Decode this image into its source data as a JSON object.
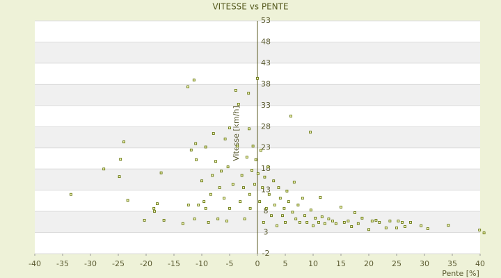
{
  "chart_data": {
    "type": "scatter",
    "title": "VITESSE vs PENTE",
    "xlabel": "Pente [%]",
    "ylabel": "Vitesse [km/h]",
    "color": "#5a6b00",
    "xlim": [
      -40,
      40
    ],
    "xticks": [
      -40,
      -35,
      -30,
      -25,
      -20,
      -15,
      -10,
      -5,
      0,
      5,
      10,
      15,
      20,
      25,
      30,
      35,
      40
    ],
    "ylim": [
      -2,
      53
    ],
    "yticks": [
      -2,
      3,
      8,
      13,
      18,
      23,
      28,
      33,
      38,
      43,
      48,
      53
    ],
    "grid": true,
    "x": [
      -33.5,
      -27.6,
      -24.6,
      -24,
      -24.8,
      -23.3,
      -20.3,
      -18.6,
      -18.5,
      -18,
      -17.3,
      -16.8,
      -13.4,
      -12.5,
      -11.4,
      -12.4,
      -11.3,
      -11.9,
      -11.1,
      -11,
      -10.6,
      -10,
      -9.6,
      -9.3,
      -9.3,
      -8.8,
      -8.4,
      -8.1,
      -7.9,
      -7.5,
      -7.1,
      -6.8,
      -6.5,
      -6,
      -5.8,
      -5.5,
      -5,
      -5.3,
      -5,
      -4.4,
      -3.9,
      -3.6,
      -3.4,
      -3.1,
      -2.8,
      -2.5,
      -2.3,
      -1.9,
      -1.6,
      -1.5,
      -1.4,
      -1.3,
      -1,
      -0.8,
      -0.5,
      -0.3,
      0,
      0.1,
      0.4,
      0.6,
      0.9,
      1.1,
      1.3,
      1.6,
      1.9,
      2.1,
      2.5,
      2.9,
      3.1,
      3.5,
      3.8,
      4.1,
      4.5,
      4.8,
      5,
      5.3,
      5.6,
      6,
      6.3,
      6.6,
      6.9,
      7.3,
      7.6,
      8.1,
      8.5,
      8.9,
      9.5,
      9.6,
      10,
      10.4,
      11,
      11.3,
      11.6,
      12.1,
      12.8,
      13.5,
      14.1,
      15,
      15.6,
      16.3,
      16.9,
      17.5,
      18.1,
      18.8,
      20,
      20.6,
      21.3,
      21.9,
      23.1,
      23.8,
      25,
      25.3,
      26,
      26.5,
      27.5,
      29.4,
      30.6,
      34.3,
      39.9,
      40.7
    ],
    "values": [
      12,
      18,
      20.3,
      24.4,
      16.2,
      10.6,
      5.9,
      8.7,
      8,
      9.8,
      17.1,
      5.9,
      5.1,
      37.4,
      39,
      9.5,
      6.2,
      22.5,
      24,
      20.2,
      9.5,
      15.2,
      10.3,
      23.2,
      8.7,
      5.4,
      12,
      16.5,
      26.4,
      19.8,
      6.2,
      13.6,
      17.5,
      11.1,
      25.1,
      5.7,
      27.7,
      18.5,
      8.7,
      14.4,
      36.6,
      23.4,
      33.3,
      10.3,
      16.5,
      13.6,
      6.2,
      20.8,
      35.9,
      27.5,
      12,
      8.7,
      17.7,
      23.4,
      14.4,
      20.2,
      39.4,
      16.9,
      10.3,
      22.4,
      13.6,
      5.4,
      16.1,
      8.7,
      18.5,
      12,
      7,
      15.2,
      9.5,
      4.6,
      13.6,
      11.1,
      7,
      8.7,
      5.4,
      12.8,
      10.3,
      30.5,
      7.8,
      14.9,
      6.2,
      9.5,
      5.4,
      11.1,
      7,
      5.4,
      26.7,
      8.3,
      4.6,
      6.4,
      5.4,
      11.3,
      6.7,
      5.1,
      6.2,
      5.7,
      5.1,
      9,
      5.4,
      5.7,
      4.4,
      7.7,
      5.1,
      6.4,
      3.7,
      5.7,
      5.9,
      5.4,
      4.1,
      5.7,
      4.1,
      5.7,
      5.4,
      4.4,
      5.4,
      4.6,
      3.9,
      4.7,
      3.6,
      2.9
    ]
  }
}
